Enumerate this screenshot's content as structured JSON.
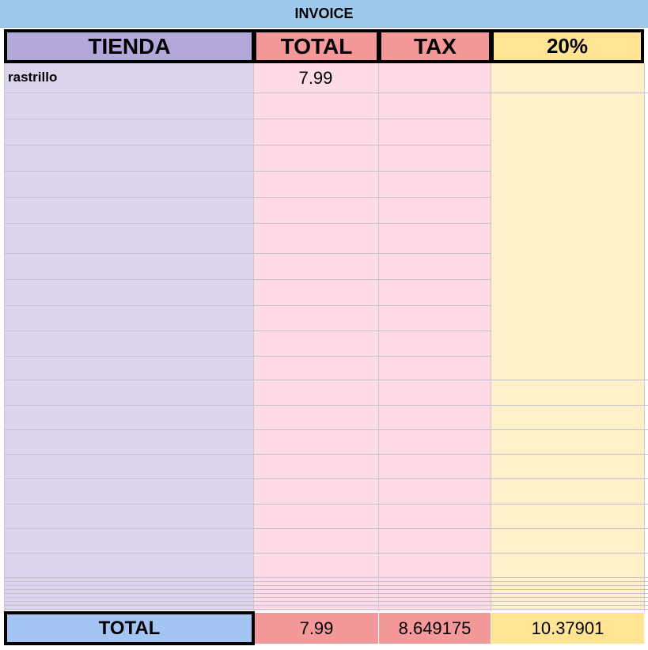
{
  "title": "INVOICE",
  "header": [
    "TIENDA",
    "TOTAL",
    "TAX",
    "20%"
  ],
  "rows": [
    {
      "item": "rastrillo",
      "total": "7.99"
    }
  ],
  "totals": {
    "label": "TOTAL",
    "total": "7.99",
    "tax": "8.649175",
    "percent": "10.37901"
  }
}
